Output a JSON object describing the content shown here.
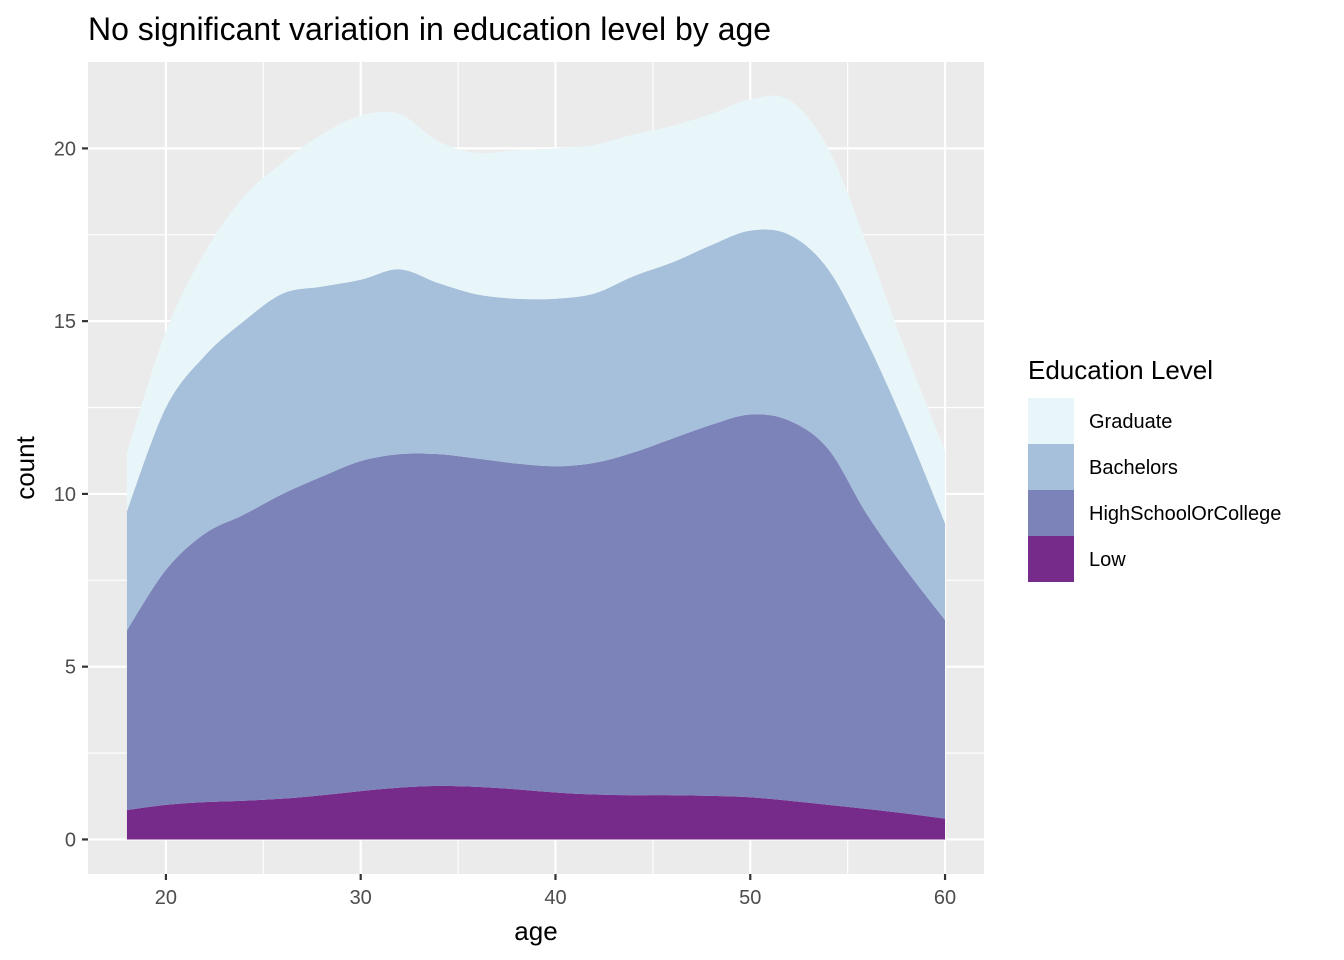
{
  "chart_data": {
    "type": "area",
    "stacked": true,
    "title": "No significant variation in education level by age",
    "xlabel": "age",
    "ylabel": "count",
    "xlim": [
      16,
      62
    ],
    "ylim": [
      -1,
      22.5
    ],
    "x_ticks": [
      20,
      30,
      40,
      50,
      60
    ],
    "y_ticks": [
      0,
      5,
      10,
      15,
      20
    ],
    "grid": true,
    "legend": {
      "title": "Education Level",
      "position": "right",
      "order": [
        "Graduate",
        "Bachelors",
        "HighSchoolOrCollege",
        "Low"
      ]
    },
    "x": [
      18,
      20,
      22,
      24,
      26,
      28,
      30,
      32,
      34,
      36,
      38,
      40,
      42,
      44,
      46,
      48,
      50,
      52,
      54,
      56,
      58,
      60
    ],
    "series": [
      {
        "name": "Low",
        "color": "#762a8a",
        "values": [
          0.85,
          1.0,
          1.08,
          1.12,
          1.18,
          1.28,
          1.4,
          1.5,
          1.55,
          1.52,
          1.45,
          1.36,
          1.3,
          1.28,
          1.28,
          1.26,
          1.22,
          1.12,
          1.0,
          0.88,
          0.75,
          0.6
        ]
      },
      {
        "name": "HighSchoolOrCollege",
        "color": "#7b83b8",
        "values": [
          5.2,
          6.8,
          7.77,
          8.28,
          8.82,
          9.22,
          9.55,
          9.65,
          9.6,
          9.5,
          9.43,
          9.44,
          9.6,
          9.92,
          10.32,
          10.74,
          11.08,
          11.0,
          10.3,
          8.52,
          7.05,
          5.75
        ]
      },
      {
        "name": "Bachelors",
        "color": "#a6c0db",
        "values": [
          3.45,
          4.7,
          5.15,
          5.6,
          5.8,
          5.5,
          5.25,
          5.35,
          4.95,
          4.75,
          4.77,
          4.85,
          4.9,
          5.1,
          5.1,
          5.2,
          5.32,
          5.38,
          5.2,
          5.0,
          4.1,
          2.8
        ]
      },
      {
        "name": "Graduate",
        "color": "#e9f6f9",
        "values": [
          1.7,
          2.2,
          3.0,
          3.6,
          3.8,
          4.4,
          4.75,
          4.5,
          4.1,
          4.1,
          4.3,
          4.35,
          4.3,
          4.1,
          3.95,
          3.8,
          3.8,
          3.9,
          3.5,
          2.8,
          2.2,
          2.1
        ]
      }
    ]
  }
}
